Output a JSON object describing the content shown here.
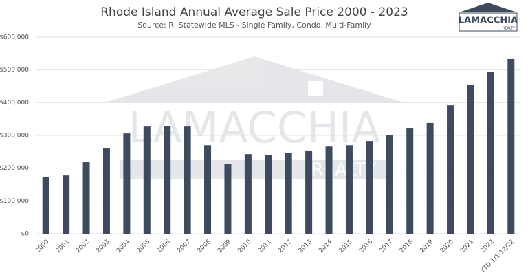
{
  "chart_data": {
    "type": "bar",
    "title": "Rhode Island Annual Average Sale Price 2000 - 2023",
    "subtitle": "Source: RI Statewide MLS - Single Family, Condo, Multi-Family",
    "logo": {
      "name": "LAMACCHIA",
      "tagline": "REALTY"
    },
    "categories": [
      "2000",
      "2001",
      "2002",
      "2003",
      "2004",
      "2005",
      "2006",
      "2007",
      "2008",
      "2009",
      "2010",
      "2011",
      "2012",
      "2013",
      "2014",
      "2015",
      "2016",
      "2017",
      "2018",
      "2019",
      "2020",
      "2021",
      "2022",
      "YTD 1/1-12/22"
    ],
    "values": [
      174000,
      178000,
      218000,
      260000,
      306000,
      327000,
      329000,
      327000,
      270000,
      214000,
      243000,
      241000,
      247000,
      254000,
      266000,
      270000,
      283000,
      302000,
      323000,
      338000,
      392000,
      455000,
      493000,
      533000
    ],
    "color": "#3e4a5d",
    "ylim": [
      0,
      600000
    ],
    "yticks": [
      {
        "value": 0,
        "label": "$0"
      },
      {
        "value": 100000,
        "label": "$100,000"
      },
      {
        "value": 200000,
        "label": "$200,000"
      },
      {
        "value": 300000,
        "label": "$300,000"
      },
      {
        "value": 400000,
        "label": "$400,000"
      },
      {
        "value": 500000,
        "label": "$500,000"
      },
      {
        "value": 600000,
        "label": "$600,000"
      }
    ],
    "grid": true
  }
}
